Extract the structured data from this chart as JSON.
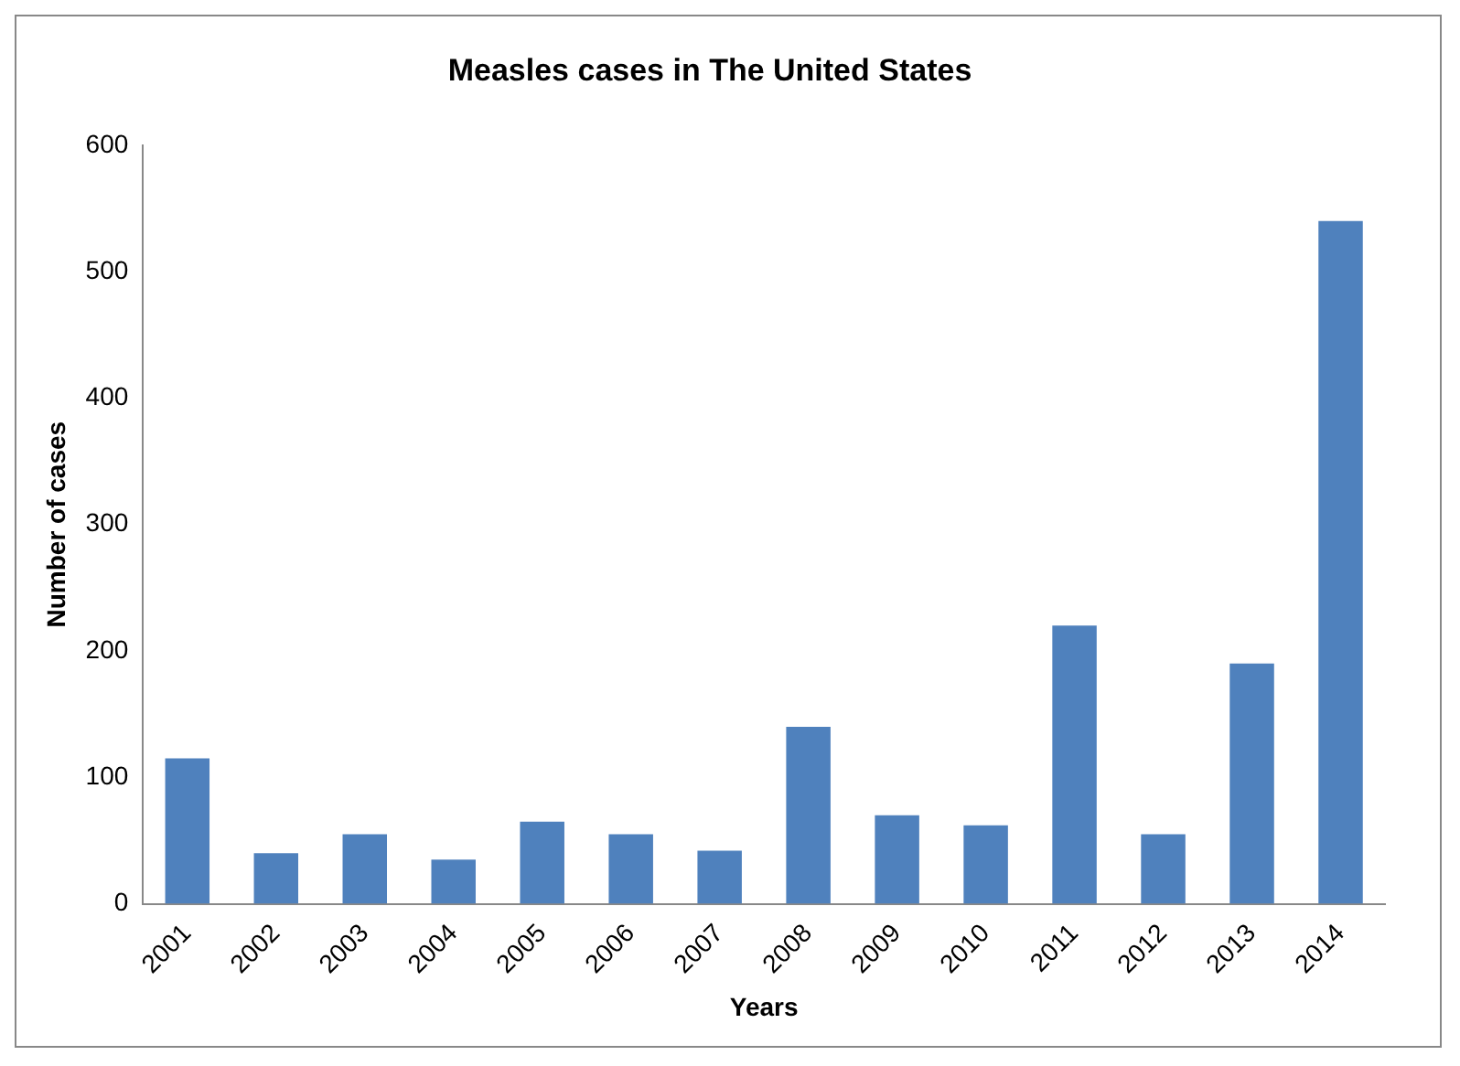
{
  "chart_data": {
    "type": "bar",
    "title": "Measles cases in The United States",
    "xlabel": "Years",
    "ylabel": "Number of cases",
    "categories": [
      "2001",
      "2002",
      "2003",
      "2004",
      "2005",
      "2006",
      "2007",
      "2008",
      "2009",
      "2010",
      "2011",
      "2012",
      "2013",
      "2014"
    ],
    "values": [
      115,
      40,
      55,
      35,
      65,
      55,
      42,
      140,
      70,
      62,
      220,
      55,
      190,
      540
    ],
    "color": "#4f81bd",
    "ylim": [
      0,
      600
    ],
    "yticks": [
      0,
      100,
      200,
      300,
      400,
      500,
      600
    ],
    "grid": false,
    "legend": false
  }
}
